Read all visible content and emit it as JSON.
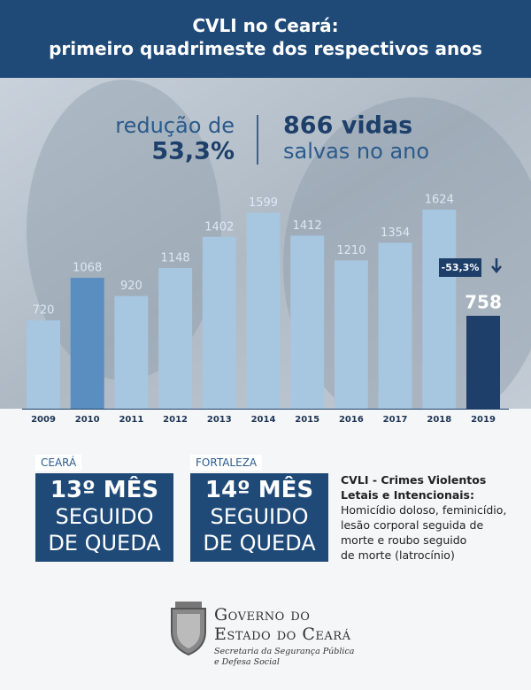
{
  "chart_data": {
    "type": "bar",
    "title": "CVLI no Ceará:",
    "subtitle": "primeiro quadrimeste dos respectivos anos",
    "categories": [
      "2009",
      "2010",
      "2011",
      "2012",
      "2013",
      "2014",
      "2015",
      "2016",
      "2017",
      "2018",
      "2019"
    ],
    "values": [
      720,
      1068,
      920,
      1148,
      1402,
      1599,
      1412,
      1210,
      1354,
      1624,
      758
    ],
    "colors": [
      "#a7c6e0",
      "#5a8ec0",
      "#a7c6e0",
      "#a7c6e0",
      "#a7c6e0",
      "#a7c6e0",
      "#a7c6e0",
      "#a7c6e0",
      "#a7c6e0",
      "#a7c6e0",
      "#1d3f69"
    ],
    "annotation": "-53,3%"
  },
  "stats": {
    "left": [
      "redução de",
      "53,3%"
    ],
    "right": [
      "866 vidas",
      "salvas no ano"
    ]
  },
  "boxes": [
    {
      "tag": "CEARÁ",
      "lines": [
        "13º MÊS",
        "SEGUIDO",
        "DE QUEDA"
      ]
    },
    {
      "tag": "FORTALEZA",
      "lines": [
        "14º MÊS",
        "SEGUIDO",
        "DE QUEDA"
      ]
    }
  ],
  "definition": {
    "heading": [
      "CVLI - Crimes Violentos",
      "Letais e Intencionais:"
    ],
    "lines": [
      "Homicídio doloso, feminicídio,",
      "lesão corporal seguida de",
      "morte e roubo seguido",
      "de morte (latrocínio)"
    ]
  },
  "footer": {
    "title": [
      "Governo do",
      "Estado do Ceará"
    ],
    "subtitle": [
      "Secretaria da Segurança Pública",
      "e Defesa Social"
    ]
  }
}
